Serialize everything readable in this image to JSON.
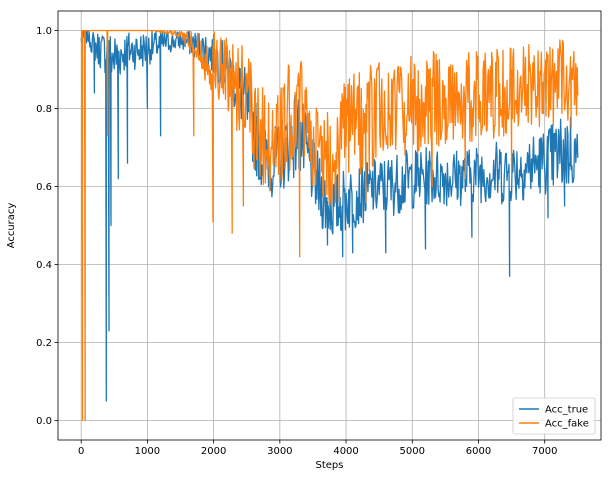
{
  "chart_data": {
    "type": "line",
    "title": "",
    "xlabel": "Steps",
    "ylabel": "Accuracy",
    "xlim": [
      -350,
      7850
    ],
    "ylim": [
      -0.05,
      1.05
    ],
    "xticks": [
      0,
      1000,
      2000,
      3000,
      4000,
      5000,
      6000,
      7000
    ],
    "yticks": [
      0.0,
      0.2,
      0.4,
      0.6,
      0.8,
      1.0
    ],
    "xtick_labels": [
      "0",
      "1000",
      "2000",
      "3000",
      "4000",
      "5000",
      "6000",
      "7000"
    ],
    "ytick_labels": [
      "0.0",
      "0.2",
      "0.4",
      "0.6",
      "0.8",
      "1.0"
    ],
    "grid": true,
    "legend_position": "bottom-right",
    "series": [
      {
        "name": "Acc_true",
        "color": "#1f77b4",
        "x_range": [
          0,
          7500
        ],
        "band_x": [
          0,
          100,
          200,
          300,
          500,
          700,
          900,
          1100,
          1300,
          1500,
          1700,
          1900,
          2100,
          2300,
          2500,
          2600,
          2700,
          2800,
          2900,
          3000,
          3100,
          3200,
          3300,
          3400,
          3500,
          3600,
          3700,
          3800,
          3900,
          4000,
          4200,
          4400,
          4600,
          4800,
          5000,
          5200,
          5400,
          5600,
          5800,
          6000,
          6200,
          6400,
          6600,
          6800,
          7000,
          7200,
          7400,
          7500
        ],
        "band_low": [
          0.95,
          0.97,
          0.92,
          0.9,
          0.86,
          0.9,
          0.9,
          0.92,
          0.94,
          0.95,
          0.93,
          0.9,
          0.86,
          0.8,
          0.72,
          0.65,
          0.6,
          0.58,
          0.57,
          0.58,
          0.6,
          0.62,
          0.62,
          0.58,
          0.55,
          0.5,
          0.47,
          0.46,
          0.47,
          0.48,
          0.5,
          0.52,
          0.52,
          0.53,
          0.54,
          0.55,
          0.55,
          0.55,
          0.55,
          0.56,
          0.55,
          0.55,
          0.56,
          0.57,
          0.58,
          0.58,
          0.59,
          0.6
        ],
        "band_high": [
          1.0,
          1.0,
          1.0,
          1.0,
          1.0,
          1.0,
          1.0,
          1.0,
          1.0,
          1.0,
          1.0,
          1.0,
          0.98,
          0.95,
          0.9,
          0.85,
          0.78,
          0.75,
          0.75,
          0.77,
          0.8,
          0.85,
          0.85,
          0.78,
          0.72,
          0.68,
          0.64,
          0.63,
          0.64,
          0.65,
          0.66,
          0.67,
          0.68,
          0.69,
          0.7,
          0.7,
          0.7,
          0.7,
          0.7,
          0.71,
          0.72,
          0.72,
          0.73,
          0.74,
          0.75,
          0.78,
          0.8,
          0.75
        ],
        "spikes": [
          [
            380,
            0.05
          ],
          [
            420,
            0.23
          ],
          [
            450,
            0.5
          ],
          [
            560,
            0.62
          ],
          [
            700,
            0.66
          ],
          [
            1200,
            0.73
          ],
          [
            3720,
            0.45
          ],
          [
            3950,
            0.42
          ],
          [
            4100,
            0.43
          ],
          [
            4600,
            0.43
          ],
          [
            5200,
            0.44
          ],
          [
            5900,
            0.47
          ],
          [
            6470,
            0.37
          ],
          [
            7050,
            0.52
          ],
          [
            7300,
            0.55
          ],
          [
            200,
            0.84
          ],
          [
            1000,
            0.8
          ]
        ]
      },
      {
        "name": "Acc_fake",
        "color": "#ff7f0e",
        "x_range": [
          0,
          7500
        ],
        "band_x": [
          0,
          100,
          300,
          500,
          700,
          900,
          1100,
          1300,
          1500,
          1700,
          1900,
          2100,
          2300,
          2500,
          2600,
          2700,
          2800,
          2900,
          3000,
          3100,
          3200,
          3300,
          3400,
          3500,
          3600,
          3700,
          3800,
          3900,
          4000,
          4200,
          4400,
          4600,
          4800,
          5000,
          5200,
          5400,
          5600,
          5800,
          6000,
          6200,
          6400,
          6600,
          6800,
          7000,
          7200,
          7400,
          7500
        ],
        "band_low": [
          1.0,
          1.0,
          1.0,
          1.0,
          1.0,
          1.0,
          1.0,
          0.99,
          0.98,
          0.93,
          0.86,
          0.8,
          0.75,
          0.7,
          0.64,
          0.6,
          0.58,
          0.58,
          0.6,
          0.62,
          0.66,
          0.68,
          0.64,
          0.6,
          0.56,
          0.54,
          0.55,
          0.57,
          0.6,
          0.62,
          0.64,
          0.66,
          0.67,
          0.68,
          0.69,
          0.7,
          0.7,
          0.71,
          0.72,
          0.72,
          0.73,
          0.74,
          0.74,
          0.75,
          0.76,
          0.77,
          0.78
        ],
        "band_high": [
          1.0,
          1.0,
          1.0,
          1.0,
          1.0,
          1.0,
          1.0,
          1.0,
          1.0,
          1.0,
          1.0,
          1.0,
          1.0,
          1.0,
          0.96,
          0.9,
          0.85,
          0.84,
          0.85,
          0.9,
          0.95,
          0.96,
          0.9,
          0.84,
          0.8,
          0.8,
          0.82,
          0.85,
          0.88,
          0.9,
          0.92,
          0.93,
          0.93,
          0.94,
          0.94,
          0.95,
          0.95,
          0.95,
          0.95,
          0.96,
          0.96,
          0.97,
          0.97,
          0.98,
          0.98,
          0.98,
          0.9
        ],
        "spikes": [
          [
            20,
            0.0
          ],
          [
            60,
            0.0
          ],
          [
            400,
            0.73
          ],
          [
            1700,
            0.73
          ],
          [
            1990,
            0.51
          ],
          [
            2280,
            0.48
          ],
          [
            2450,
            0.55
          ],
          [
            3300,
            0.42
          ],
          [
            3900,
            0.56
          ],
          [
            4300,
            0.56
          ],
          [
            5300,
            0.6
          ],
          [
            5800,
            0.62
          ],
          [
            6500,
            0.64
          ],
          [
            7400,
            0.75
          ]
        ]
      }
    ]
  }
}
